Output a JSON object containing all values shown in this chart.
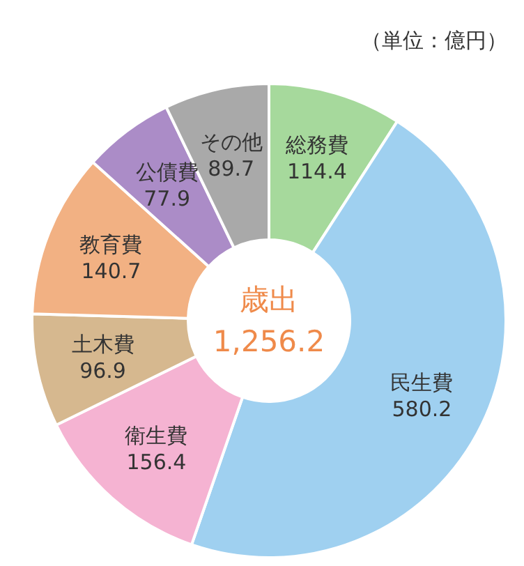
{
  "chart_data": {
    "type": "donut",
    "title": "歳出",
    "annotations": [
      "1,256.2",
      "（単位：億円）"
    ],
    "categories": [
      "総務費",
      "民生費",
      "衛生費",
      "土木費",
      "教育費",
      "公債費",
      "その他"
    ],
    "values": [
      114.4,
      580.2,
      156.4,
      96.9,
      140.7,
      77.9,
      89.7
    ],
    "colors": [
      "#a6d99c",
      "#9fd0f0",
      "#f5b3d2",
      "#d6b88f",
      "#f2b183",
      "#ab8cc7",
      "#a9a9a9"
    ],
    "data_labels": true,
    "legend": false
  }
}
